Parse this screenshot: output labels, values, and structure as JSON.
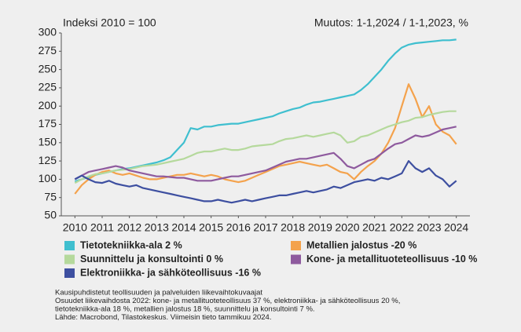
{
  "chart_data": {
    "type": "line",
    "subtitle_left": "Indeksi 2010 = 100",
    "subtitle_right": "Muutos: 1-1,2024 / 1-1,2023, %",
    "x": [
      2010,
      2010.25,
      2010.5,
      2010.75,
      2011,
      2011.25,
      2011.5,
      2011.75,
      2012,
      2012.25,
      2012.5,
      2012.75,
      2013,
      2013.25,
      2013.5,
      2013.75,
      2014,
      2014.25,
      2014.5,
      2014.75,
      2015,
      2015.25,
      2015.5,
      2015.75,
      2016,
      2016.25,
      2016.5,
      2016.75,
      2017,
      2017.25,
      2017.5,
      2017.75,
      2018,
      2018.25,
      2018.5,
      2018.75,
      2019,
      2019.25,
      2019.5,
      2019.75,
      2020,
      2020.25,
      2020.5,
      2020.75,
      2021,
      2021.25,
      2021.5,
      2021.75,
      2022,
      2022.25,
      2022.5,
      2022.75,
      2023,
      2023.25,
      2023.5,
      2023.75,
      2024
    ],
    "xlim": [
      2009.5,
      2024.5
    ],
    "xticks": [
      2010,
      2011,
      2012,
      2013,
      2014,
      2015,
      2016,
      2017,
      2018,
      2019,
      2020,
      2021,
      2022,
      2023,
      2024
    ],
    "ylim": [
      50,
      300
    ],
    "yticks": [
      50,
      75,
      100,
      125,
      150,
      175,
      200,
      225,
      250,
      275,
      300
    ],
    "series": [
      {
        "name": "Tietotekniikka-ala 2 %",
        "color": "#3fbfcf",
        "values": [
          97,
          100,
          103,
          106,
          108,
          110,
          112,
          114,
          115,
          117,
          119,
          121,
          123,
          126,
          130,
          140,
          150,
          170,
          168,
          172,
          172,
          174,
          175,
          176,
          176,
          178,
          180,
          182,
          184,
          186,
          190,
          193,
          196,
          198,
          202,
          205,
          206,
          208,
          210,
          212,
          214,
          216,
          222,
          230,
          240,
          250,
          262,
          272,
          280,
          284,
          286,
          287,
          288,
          289,
          290,
          290,
          291
        ]
      },
      {
        "name": "Metallien jalostus -20 %",
        "color": "#f4a24c",
        "values": [
          80,
          92,
          100,
          106,
          110,
          112,
          108,
          106,
          108,
          105,
          102,
          100,
          100,
          102,
          104,
          106,
          106,
          108,
          106,
          104,
          106,
          104,
          100,
          98,
          96,
          98,
          102,
          106,
          110,
          114,
          118,
          120,
          122,
          124,
          122,
          120,
          118,
          120,
          115,
          110,
          108,
          100,
          110,
          118,
          125,
          135,
          150,
          170,
          200,
          230,
          210,
          185,
          200,
          175,
          165,
          160,
          148
        ]
      },
      {
        "name": "Suunnittelu ja konsultointi 0 %",
        "color": "#b5d99c",
        "values": [
          95,
          100,
          104,
          107,
          108,
          110,
          112,
          113,
          114,
          116,
          118,
          119,
          120,
          122,
          124,
          126,
          128,
          132,
          136,
          138,
          138,
          140,
          142,
          140,
          140,
          142,
          145,
          146,
          147,
          148,
          152,
          155,
          156,
          158,
          160,
          158,
          160,
          162,
          164,
          160,
          150,
          152,
          158,
          160,
          164,
          168,
          172,
          175,
          178,
          180,
          184,
          185,
          188,
          190,
          192,
          193,
          193
        ]
      },
      {
        "name": "Kone- ja metallituoteteollisuus -10 %",
        "color": "#8e5a9e",
        "values": [
          100,
          105,
          110,
          112,
          114,
          116,
          118,
          116,
          112,
          110,
          108,
          106,
          104,
          104,
          103,
          102,
          102,
          100,
          98,
          98,
          98,
          100,
          102,
          104,
          104,
          106,
          108,
          110,
          112,
          116,
          120,
          124,
          126,
          128,
          128,
          130,
          132,
          134,
          136,
          128,
          118,
          115,
          120,
          125,
          128,
          135,
          142,
          148,
          150,
          155,
          160,
          158,
          160,
          164,
          168,
          170,
          172
        ]
      },
      {
        "name": "Elektroniikka- ja sähköteollisuus -16 %",
        "color": "#3d4fa0",
        "values": [
          100,
          105,
          100,
          96,
          95,
          98,
          94,
          92,
          90,
          92,
          88,
          86,
          84,
          82,
          80,
          78,
          76,
          74,
          72,
          70,
          70,
          72,
          70,
          68,
          70,
          72,
          70,
          72,
          74,
          76,
          78,
          78,
          80,
          82,
          84,
          82,
          84,
          86,
          90,
          88,
          92,
          96,
          98,
          100,
          98,
          102,
          100,
          104,
          108,
          125,
          115,
          110,
          115,
          105,
          100,
          90,
          98
        ]
      }
    ],
    "notes": [
      "Kausipuhdistetut teollisuuden ja palveluiden liikevaihtokuvaajat",
      "Osuudet liikevaihdosta 2022: kone- ja metallituoteteollisuus 37 %, elektroniikka- ja sähköteollisuus 20 %,",
      "tietotekniikka-ala 18 %, metallien jalostus 18 %, suunnittelu ja konsultointi 7 %.",
      "Lähde: Macrobond, Tilastokeskus. Viimeisin tieto tammikuu 2024."
    ]
  }
}
